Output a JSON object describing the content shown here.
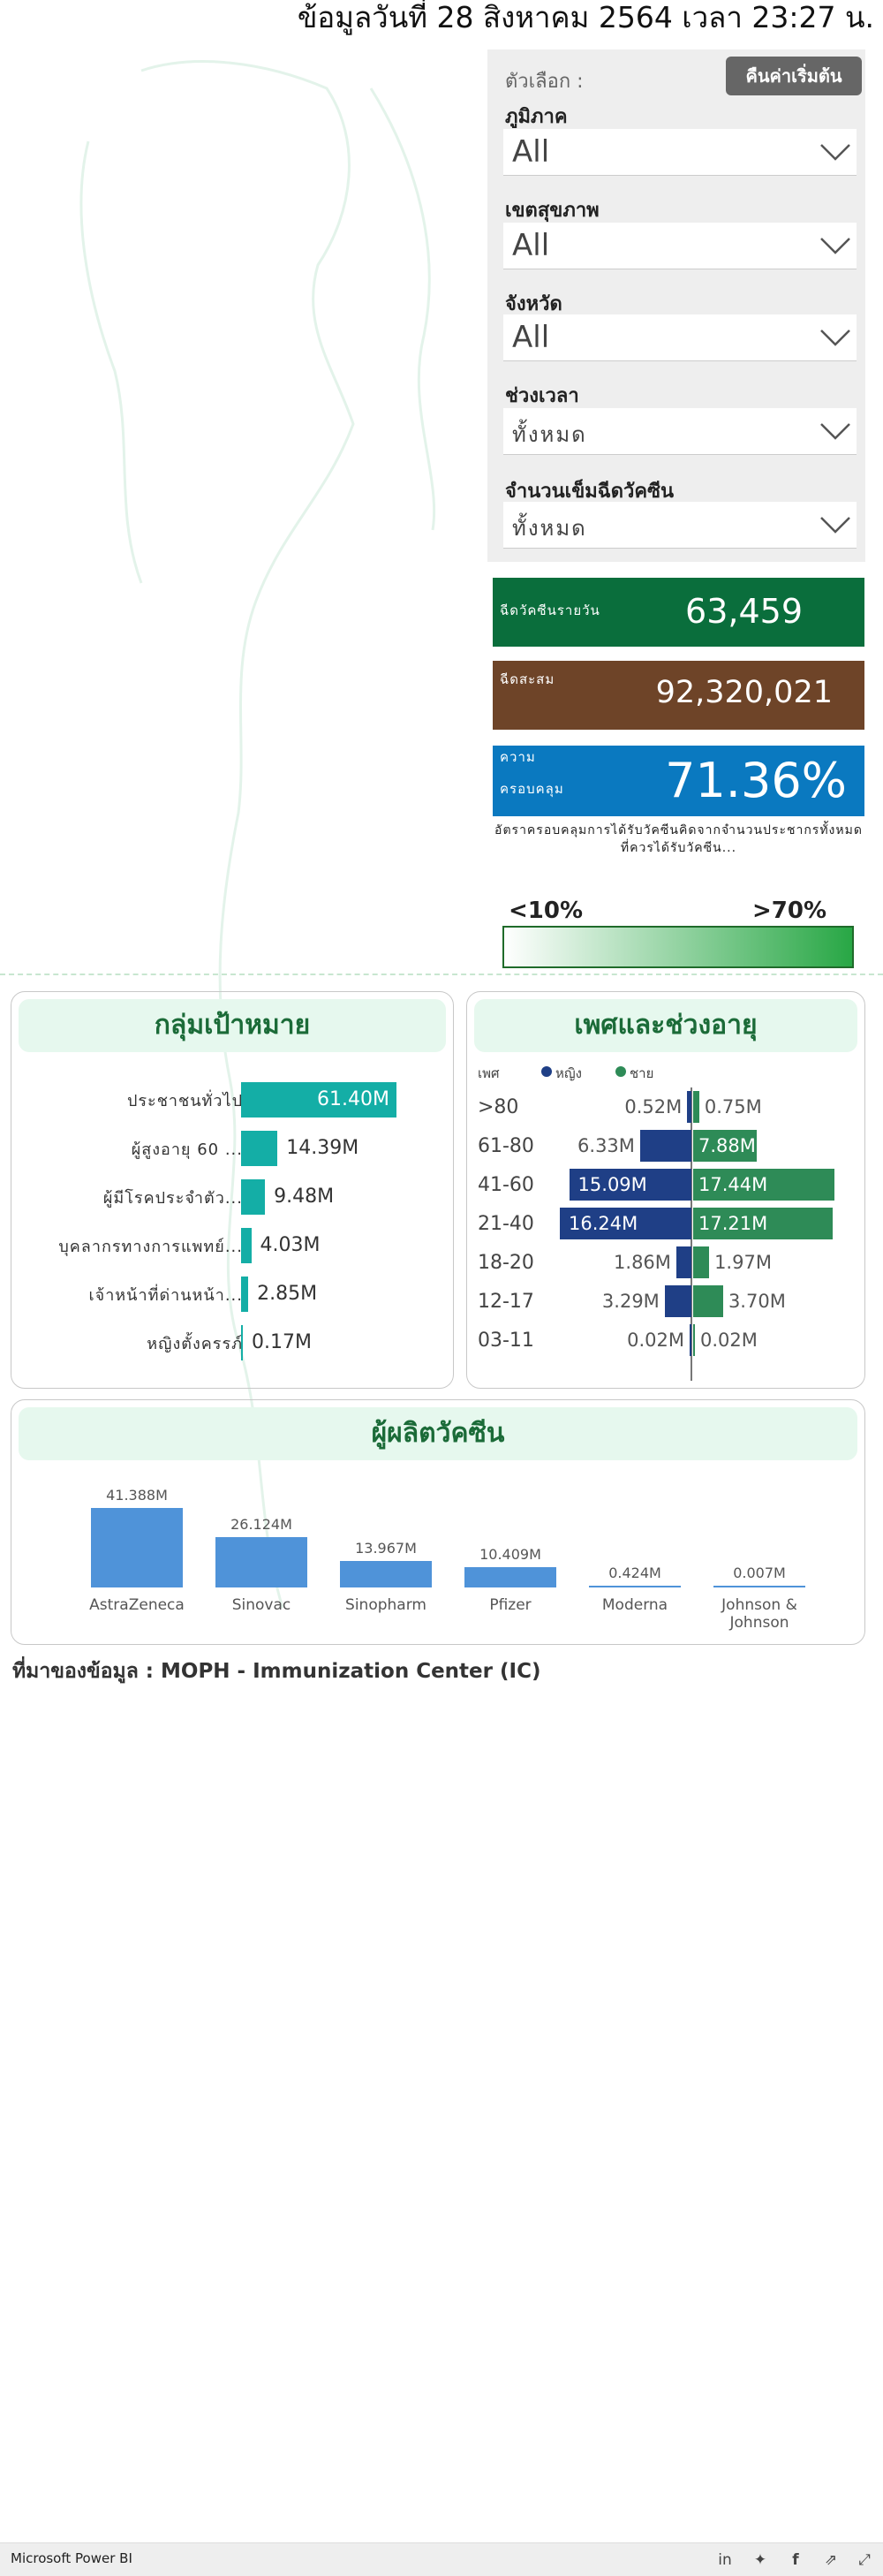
{
  "header": {
    "update_text": "ข้อมูลวันที่ 28 สิงหาคม 2564 เวลา 23:27 น."
  },
  "filters": {
    "options_label": "ตัวเลือก :",
    "reset_label": "คืนค่าเริ่มต้น",
    "slicers": [
      {
        "title": "ภูมิภาค",
        "value": "All"
      },
      {
        "title": "เขตสุขภาพ",
        "value": "All"
      },
      {
        "title": "จังหวัด",
        "value": "All"
      },
      {
        "title": "ช่วงเวลา",
        "value": "ทั้งหมด"
      },
      {
        "title": "จำนวนเข็มฉีดวัคซีน",
        "value": "ทั้งหมด"
      }
    ]
  },
  "kpis": {
    "daily": {
      "label": "ฉีดวัคซีนรายวัน",
      "value": "63,459",
      "color": "#0a6e3c"
    },
    "cumulative": {
      "label": "ฉีดสะสม",
      "value": "92,320,021",
      "color": "#6e4428"
    },
    "coverage": {
      "label_line1": "ความ",
      "label_line2": "ครอบคลุม",
      "value": "71.36%",
      "color": "#0a79c0"
    }
  },
  "coverage_note": "อัตราครอบคลุมการได้รับวัคซีนคิดจากจำนวนประชากรทั้งหมดที่ควรได้รับวัคซีน...",
  "legend": {
    "low": "<10%",
    "high": ">70%"
  },
  "target_groups": {
    "title": "กลุ่มเป้าหมาย",
    "items": [
      {
        "label": "ประชาชนทั่วไป",
        "value": 61.4,
        "text": "61.40M"
      },
      {
        "label": "ผู้สูงอายุ 60 ...",
        "value": 14.39,
        "text": "14.39M"
      },
      {
        "label": "ผู้มีโรคประจำตัว...",
        "value": 9.48,
        "text": "9.48M"
      },
      {
        "label": "บุคลากรทางการแพทย์...",
        "value": 4.03,
        "text": "4.03M"
      },
      {
        "label": "เจ้าหน้าที่ด่านหน้า...",
        "value": 2.85,
        "text": "2.85M"
      },
      {
        "label": "หญิงตั้งครรภ์",
        "value": 0.17,
        "text": "0.17M"
      }
    ]
  },
  "gender_age": {
    "title": "เพศและช่วงอายุ",
    "legend_title": "เพศ",
    "legend": [
      {
        "name": "หญิง",
        "color": "#1f3f86"
      },
      {
        "name": "ชาย",
        "color": "#2e8b57"
      }
    ],
    "rows": [
      {
        "age": ">80",
        "female": 0.52,
        "female_text": "0.52M",
        "male": 0.75,
        "male_text": "0.75M"
      },
      {
        "age": "61-80",
        "female": 6.33,
        "female_text": "6.33M",
        "male": 7.88,
        "male_text": "7.88M"
      },
      {
        "age": "41-60",
        "female": 15.09,
        "female_text": "15.09M",
        "male": 17.44,
        "male_text": "17.44M"
      },
      {
        "age": "21-40",
        "female": 16.24,
        "female_text": "16.24M",
        "male": 17.21,
        "male_text": "17.21M"
      },
      {
        "age": "18-20",
        "female": 1.86,
        "female_text": "1.86M",
        "male": 1.97,
        "male_text": "1.97M"
      },
      {
        "age": "12-17",
        "female": 3.29,
        "female_text": "3.29M",
        "male": 3.7,
        "male_text": "3.70M"
      },
      {
        "age": "03-11",
        "female": 0.02,
        "female_text": "0.02M",
        "male": 0.02,
        "male_text": "0.02M"
      }
    ]
  },
  "manufacturers": {
    "title": "ผู้ผลิตวัคซีน",
    "items": [
      {
        "name": "AstraZeneca",
        "value": 41.388,
        "text": "41.388M"
      },
      {
        "name": "Sinovac",
        "value": 26.124,
        "text": "26.124M"
      },
      {
        "name": "Sinopharm",
        "value": 13.967,
        "text": "13.967M"
      },
      {
        "name": "Pfizer",
        "value": 10.409,
        "text": "10.409M"
      },
      {
        "name": "Moderna",
        "value": 0.424,
        "text": "0.424M"
      },
      {
        "name": "Johnson & Johnson",
        "value": 0.007,
        "text": "0.007M"
      }
    ]
  },
  "source_text": "ที่มาของข้อมูล  : MOPH - Immunization Center (IC)",
  "footer": {
    "brand": "Microsoft Power BI"
  },
  "chart_data": [
    {
      "type": "bar",
      "title": "กลุ่มเป้าหมาย",
      "categories": [
        "ประชาชนทั่วไป",
        "ผู้สูงอายุ 60 ...",
        "ผู้มีโรคประจำตัว...",
        "บุคลากรทางการแพทย์...",
        "เจ้าหน้าที่ด่านหน้า...",
        "หญิงตั้งครรภ์"
      ],
      "values": [
        61.4,
        14.39,
        9.48,
        4.03,
        2.85,
        0.17
      ]
    },
    {
      "type": "bar",
      "title": "เพศและช่วงอายุ",
      "categories": [
        ">80",
        "61-80",
        "41-60",
        "21-40",
        "18-20",
        "12-17",
        "03-11"
      ],
      "series": [
        {
          "name": "หญิง",
          "values": [
            0.52,
            6.33,
            15.09,
            16.24,
            1.86,
            3.29,
            0.02
          ]
        },
        {
          "name": "ชาย",
          "values": [
            0.75,
            7.88,
            17.44,
            17.21,
            1.97,
            3.7,
            0.02
          ]
        }
      ]
    },
    {
      "type": "bar",
      "title": "ผู้ผลิตวัคซีน",
      "categories": [
        "AstraZeneca",
        "Sinovac",
        "Sinopharm",
        "Pfizer",
        "Moderna",
        "Johnson & Johnson"
      ],
      "values": [
        41.388,
        26.124,
        13.967,
        10.409,
        0.424,
        0.007
      ]
    }
  ]
}
